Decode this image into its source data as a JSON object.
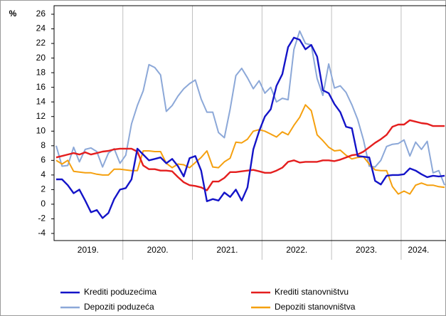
{
  "chart_data": {
    "type": "line",
    "ylabel": "%",
    "categories": [
      null,
      null,
      null,
      null,
      null,
      null,
      "2019.",
      null,
      null,
      null,
      null,
      null,
      null,
      null,
      null,
      null,
      null,
      null,
      "2020.",
      null,
      null,
      null,
      null,
      null,
      null,
      null,
      null,
      null,
      null,
      null,
      "2021.",
      null,
      null,
      null,
      null,
      null,
      null,
      null,
      null,
      null,
      null,
      null,
      "2022.",
      null,
      null,
      null,
      null,
      null,
      null,
      null,
      null,
      null,
      null,
      null,
      "2023.",
      null,
      null,
      null,
      null,
      null,
      null,
      null,
      null,
      "2024.",
      null,
      null,
      null,
      null
    ],
    "ylim": [
      -4,
      26
    ],
    "yticks": [
      -4,
      -2,
      0,
      2,
      4,
      6,
      8,
      10,
      12,
      14,
      16,
      18,
      20,
      22,
      24,
      26
    ],
    "series": [
      {
        "name": "Krediti poduzećima",
        "color": "#1414c8",
        "values": [
          3.4,
          3.4,
          2.6,
          1.5,
          2.0,
          0.5,
          -1.1,
          -0.8,
          -1.9,
          -1.2,
          0.7,
          2.0,
          2.2,
          3.4,
          7.6,
          6.8,
          6.0,
          6.2,
          6.4,
          5.6,
          6.2,
          5.2,
          3.8,
          6.3,
          6.6,
          4.6,
          0.4,
          0.7,
          0.5,
          1.6,
          1.0,
          2.0,
          0.5,
          2.3,
          7.5,
          10.0,
          12.0,
          13.0,
          16.2,
          17.8,
          21.5,
          22.8,
          22.5,
          21.2,
          21.8,
          20.2,
          15.6,
          15.2,
          13.7,
          12.6,
          10.6,
          10.4,
          6.6,
          6.5,
          6.4,
          3.2,
          2.7,
          3.9,
          4.0,
          4.0,
          4.1,
          4.9,
          4.6,
          4.1,
          3.7,
          3.9,
          3.8,
          3.9
        ]
      },
      {
        "name": "Krediti stanovništvu",
        "color": "#e41e1e",
        "values": [
          6.4,
          6.6,
          6.8,
          7.0,
          6.8,
          7.1,
          6.8,
          7.0,
          7.2,
          7.3,
          7.5,
          7.6,
          7.6,
          7.6,
          7.2,
          5.3,
          4.8,
          4.8,
          4.6,
          4.6,
          4.5,
          3.7,
          3.0,
          2.6,
          2.5,
          2.3,
          1.9,
          3.1,
          3.1,
          3.6,
          4.4,
          4.4,
          4.5,
          4.6,
          4.7,
          4.5,
          4.3,
          4.3,
          4.6,
          5.0,
          5.8,
          6.0,
          5.7,
          5.8,
          5.8,
          5.8,
          6.0,
          6.0,
          5.9,
          6.1,
          6.4,
          6.7,
          6.8,
          7.2,
          7.8,
          8.4,
          8.9,
          9.5,
          10.6,
          10.9,
          10.9,
          11.5,
          11.3,
          11.1,
          11.0,
          10.7,
          10.7,
          10.7
        ]
      },
      {
        "name": "Depoziti poduzeća",
        "color": "#8ca8d8",
        "values": [
          8.0,
          5.2,
          5.3,
          7.8,
          5.8,
          7.5,
          7.7,
          7.2,
          5.1,
          7.0,
          7.6,
          5.6,
          6.7,
          11.0,
          13.5,
          15.5,
          19.1,
          18.7,
          17.7,
          12.7,
          13.5,
          14.8,
          15.8,
          16.5,
          17.0,
          14.4,
          12.6,
          12.6,
          9.8,
          9.1,
          13.0,
          17.6,
          18.6,
          17.3,
          15.8,
          16.9,
          15.2,
          16.0,
          14.0,
          14.5,
          14.3,
          21.2,
          23.7,
          22.0,
          21.8,
          17.2,
          14.9,
          19.2,
          15.9,
          16.2,
          15.3,
          13.6,
          11.6,
          8.8,
          5.2,
          5.1,
          6.0,
          7.9,
          8.2,
          8.3,
          8.8,
          6.6,
          8.5,
          7.5,
          8.6,
          4.3,
          4.6,
          2.6
        ]
      },
      {
        "name": "Depoziti stanovništva",
        "color": "#f5a00f",
        "values": [
          6.0,
          5.5,
          6.0,
          4.5,
          4.4,
          4.3,
          4.3,
          4.1,
          4.0,
          4.0,
          4.8,
          4.8,
          4.7,
          4.6,
          4.6,
          7.3,
          7.3,
          7.2,
          7.2,
          5.6,
          5.0,
          5.5,
          5.4,
          5.0,
          5.7,
          6.4,
          7.3,
          5.1,
          5.0,
          5.8,
          6.3,
          8.5,
          8.4,
          8.9,
          10.0,
          10.2,
          10.0,
          9.6,
          9.2,
          9.9,
          9.5,
          10.8,
          11.9,
          13.6,
          12.8,
          9.5,
          8.7,
          7.8,
          7.3,
          7.4,
          6.7,
          6.2,
          6.4,
          6.5,
          5.5,
          4.7,
          4.6,
          4.6,
          2.4,
          1.4,
          1.8,
          1.4,
          2.6,
          2.9,
          2.6,
          2.6,
          2.4,
          2.3
        ]
      }
    ]
  }
}
